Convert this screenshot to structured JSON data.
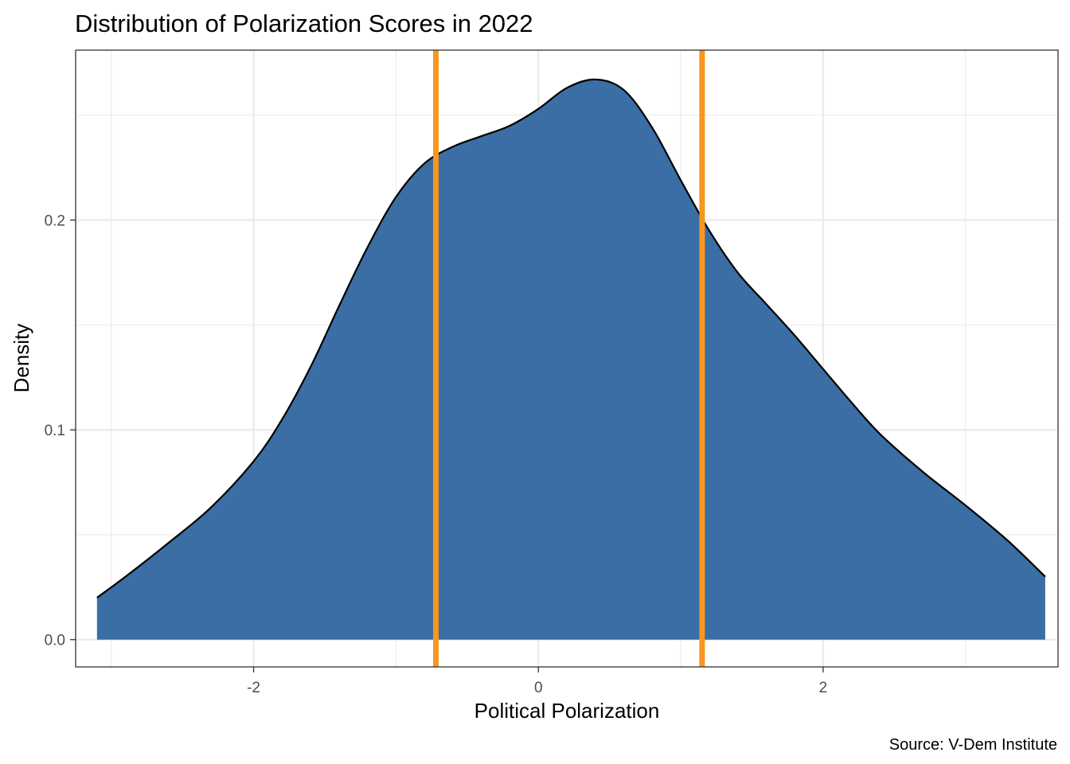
{
  "chart_data": {
    "type": "area",
    "title": "Distribution of Polarization Scores in 2022",
    "xlabel": "Political Polarization",
    "ylabel": "Density",
    "caption": "Source: V-Dem Institute",
    "xlim": [
      -3.25,
      3.65
    ],
    "ylim": [
      -0.013,
      0.281
    ],
    "x_ticks": [
      -2,
      0,
      2
    ],
    "x_tick_labels": [
      "-2",
      "0",
      "2"
    ],
    "x_minor_ticks": [
      -3,
      -1,
      1,
      3
    ],
    "y_ticks": [
      0.0,
      0.1,
      0.2
    ],
    "y_tick_labels": [
      "0.0",
      "0.1",
      "0.2"
    ],
    "y_minor_ticks": [
      0.05,
      0.15,
      0.25
    ],
    "grid": true,
    "series": [
      {
        "x": [
          -3.1,
          -2.9,
          -2.6,
          -2.3,
          -2.0,
          -1.8,
          -1.6,
          -1.4,
          -1.2,
          -1.0,
          -0.8,
          -0.6,
          -0.4,
          -0.2,
          0.0,
          0.2,
          0.4,
          0.6,
          0.8,
          1.0,
          1.2,
          1.4,
          1.6,
          1.8,
          2.0,
          2.2,
          2.4,
          2.7,
          3.0,
          3.3,
          3.56
        ],
        "y": [
          0.02,
          0.03,
          0.046,
          0.063,
          0.085,
          0.105,
          0.13,
          0.159,
          0.187,
          0.211,
          0.227,
          0.235,
          0.24,
          0.245,
          0.253,
          0.263,
          0.267,
          0.262,
          0.244,
          0.219,
          0.195,
          0.175,
          0.16,
          0.145,
          0.129,
          0.113,
          0.098,
          0.08,
          0.064,
          0.047,
          0.03
        ]
      }
    ],
    "reference_lines": [
      -0.72,
      1.15
    ],
    "colors": {
      "fill": "#3a6ea5",
      "outline": "#000000",
      "reference_line": "#f8961e",
      "grid": "#ebebeb",
      "panel_border": "#333333",
      "tick_label": "#4d4d4d"
    }
  }
}
